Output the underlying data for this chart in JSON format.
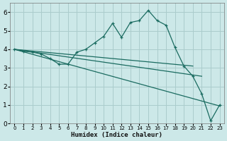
{
  "xlabel": "Humidex (Indice chaleur)",
  "xlim": [
    -0.5,
    23.5
  ],
  "ylim": [
    0,
    6.5
  ],
  "xticks": [
    0,
    1,
    2,
    3,
    4,
    5,
    6,
    7,
    8,
    9,
    10,
    11,
    12,
    13,
    14,
    15,
    16,
    17,
    18,
    19,
    20,
    21,
    22,
    23
  ],
  "yticks": [
    0,
    1,
    2,
    3,
    4,
    5,
    6
  ],
  "bg_color": "#cce8e8",
  "grid_color": "#aacccc",
  "line_color": "#1a6b60",
  "zigzag": {
    "x": [
      0,
      1,
      2,
      3,
      4,
      5,
      6,
      7,
      8,
      9,
      10,
      11,
      12,
      13,
      14,
      15,
      16,
      17,
      18,
      19,
      20,
      21,
      22,
      23
    ],
    "y": [
      4.0,
      3.9,
      3.85,
      3.75,
      3.5,
      3.2,
      3.2,
      3.85,
      4.0,
      4.35,
      4.7,
      5.4,
      4.65,
      5.45,
      5.55,
      6.1,
      5.55,
      5.3,
      4.1,
      3.1,
      2.55,
      1.6,
      0.15,
      1.0
    ]
  },
  "trend_lines": [
    {
      "x": [
        0,
        20
      ],
      "y": [
        4.0,
        3.1
      ]
    },
    {
      "x": [
        0,
        21
      ],
      "y": [
        4.0,
        2.55
      ]
    },
    {
      "x": [
        0,
        23
      ],
      "y": [
        4.0,
        0.95
      ]
    }
  ]
}
